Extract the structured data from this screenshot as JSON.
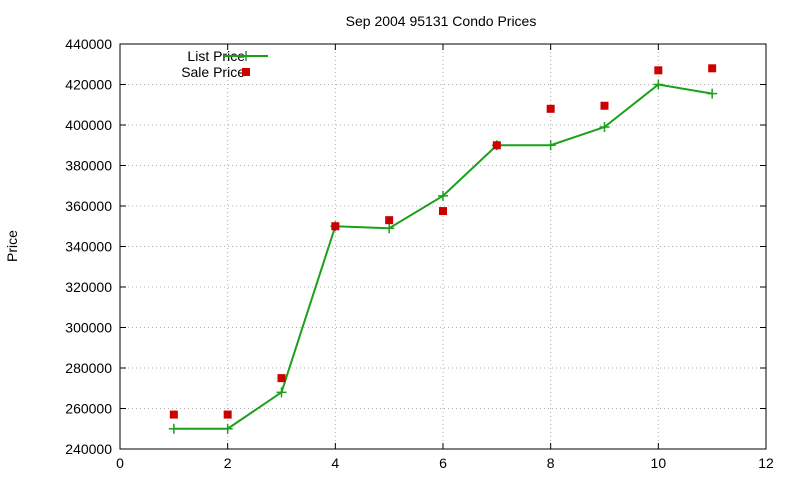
{
  "chart_data": {
    "type": "line",
    "title": "Sep 2004 95131 Condo Prices",
    "xlabel": "",
    "ylabel": "Price",
    "xlim": [
      0,
      12
    ],
    "ylim": [
      240000,
      440000
    ],
    "x_ticks": [
      "0",
      "2",
      "4",
      "6",
      "8",
      "10",
      "12"
    ],
    "y_ticks": [
      "240000",
      "260000",
      "280000",
      "300000",
      "320000",
      "340000",
      "360000",
      "380000",
      "400000",
      "420000",
      "440000"
    ],
    "grid": true,
    "legend_position": "top-left",
    "series": [
      {
        "name": "List Price",
        "style": "line-with-plus-markers",
        "color": "#1aa01a",
        "x": [
          1,
          2,
          3,
          4,
          5,
          6,
          7,
          8,
          9,
          10,
          11
        ],
        "y": [
          250000,
          250000,
          268000,
          350000,
          349000,
          365000,
          390000,
          390000,
          399000,
          420000,
          415500
        ]
      },
      {
        "name": "Sale Price",
        "style": "square-markers",
        "color": "#cc0000",
        "x": [
          1,
          2,
          3,
          4,
          5,
          6,
          7,
          8,
          9,
          10,
          11
        ],
        "y": [
          257000,
          257000,
          275000,
          350000,
          353000,
          357500,
          390000,
          408000,
          409500,
          427000,
          428000
        ]
      }
    ]
  }
}
